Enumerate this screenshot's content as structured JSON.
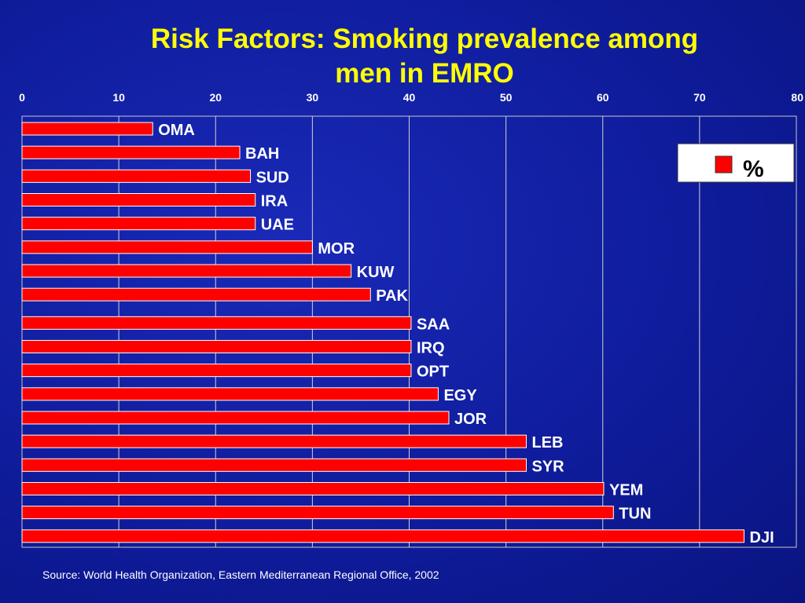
{
  "slide": {
    "title_line1": "Risk Factors: Smoking prevalence among",
    "title_line2": "men in EMRO",
    "source": "Source: World Health Organization, Eastern Mediterranean Regional Office, 2002"
  },
  "colors": {
    "bar_fill": "#ff0000",
    "bar_stroke": "#ffffff",
    "title": "#ffff00",
    "background": "#1020a8"
  },
  "chart_data": {
    "type": "bar",
    "orientation": "horizontal",
    "categories": [
      "OMA",
      "BAH",
      "SUD",
      "IRA",
      "UAE",
      "MOR",
      "KUW",
      "PAK",
      "SAA",
      "IRQ",
      "OPT",
      "EGY",
      "JOR",
      "LEB",
      "SYR",
      "YEM",
      "TUN",
      "DJI"
    ],
    "series": [
      {
        "name": "%",
        "values": [
          13.5,
          22.5,
          23.6,
          24.1,
          24.1,
          30,
          34,
          36,
          40.2,
          40.2,
          40.2,
          43,
          44.1,
          52.1,
          52.1,
          60.1,
          61.1,
          74.6
        ]
      }
    ],
    "x_ticks": [
      0,
      10,
      20,
      30,
      40,
      50,
      60,
      70,
      80
    ],
    "xlim": [
      0,
      80
    ],
    "grid": true,
    "legend_position": "top-right",
    "title": "Risk Factors: Smoking prevalence among men in EMRO"
  }
}
